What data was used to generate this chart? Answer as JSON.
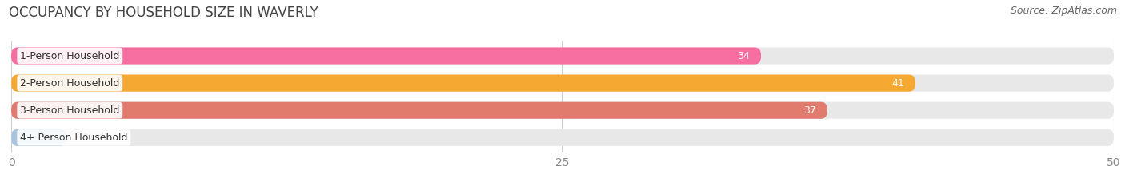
{
  "title": "OCCUPANCY BY HOUSEHOLD SIZE IN WAVERLY",
  "source": "Source: ZipAtlas.com",
  "categories": [
    "1-Person Household",
    "2-Person Household",
    "3-Person Household",
    "4+ Person Household"
  ],
  "values": [
    34,
    41,
    37,
    0
  ],
  "bar_colors": [
    "#f76fa0",
    "#f5a832",
    "#e07b6e",
    "#a8c4e0"
  ],
  "background_color": "#ffffff",
  "bar_bg_color": "#e8e8e8",
  "xlim": [
    0,
    50
  ],
  "xticks": [
    0,
    25,
    50
  ],
  "value_label_color": "#ffffff",
  "zero_label_color": "#555555",
  "title_fontsize": 12,
  "source_fontsize": 9,
  "tick_fontsize": 10,
  "bar_label_fontsize": 9,
  "category_fontsize": 9,
  "title_color": "#444444",
  "source_color": "#666666",
  "tick_color": "#888888",
  "grid_color": "#cccccc"
}
